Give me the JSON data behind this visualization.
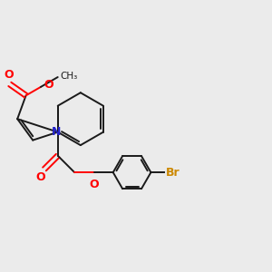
{
  "background_color": "#ebebeb",
  "bond_color": "#1a1a1a",
  "oxygen_color": "#ff0000",
  "nitrogen_color": "#2222cc",
  "bromine_color": "#cc8800",
  "figsize": [
    3.0,
    3.0
  ],
  "dpi": 100,
  "xlim": [
    0,
    10
  ],
  "ylim": [
    0,
    10
  ],
  "lw": 1.4
}
